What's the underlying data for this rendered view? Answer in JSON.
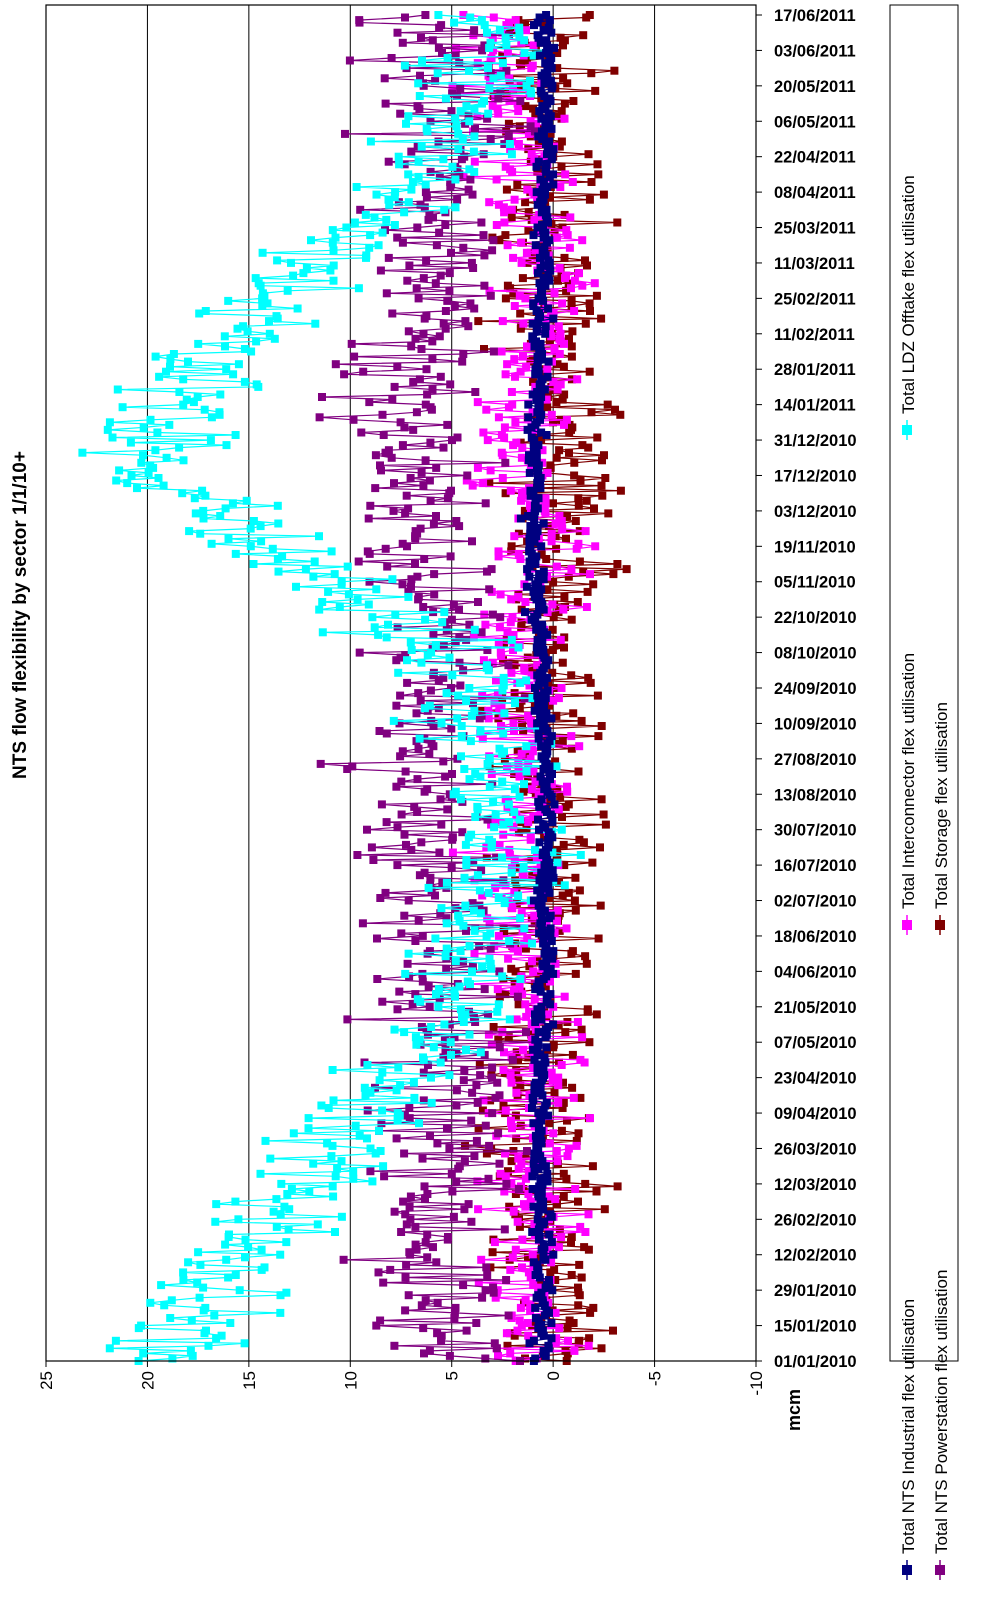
{
  "chart_data": {
    "type": "line",
    "title": "NTS flow flexibility by sector 1/1/10+",
    "ylabel": "mcm",
    "xlabel": "",
    "ylim": [
      -10,
      25
    ],
    "yticks": [
      25,
      20,
      15,
      10,
      5,
      0,
      -5,
      -10
    ],
    "ytick_labels": [
      "25",
      "20",
      "15",
      "10",
      "5",
      "0",
      "-5",
      "-10"
    ],
    "grid": true,
    "orientation": "rotated-90",
    "legend_position": "bottom",
    "x_start": "01/01/2010",
    "x_end": "17/06/2011",
    "x_tick_labels": [
      "01/01/2010",
      "15/01/2010",
      "29/01/2010",
      "12/02/2010",
      "26/02/2010",
      "12/03/2010",
      "26/03/2010",
      "09/04/2010",
      "23/04/2010",
      "07/05/2010",
      "21/05/2010",
      "04/06/2010",
      "18/06/2010",
      "02/07/2010",
      "16/07/2010",
      "30/07/2010",
      "13/08/2010",
      "27/08/2010",
      "10/09/2010",
      "24/09/2010",
      "08/10/2010",
      "22/10/2010",
      "05/11/2010",
      "19/11/2010",
      "03/12/2010",
      "17/12/2010",
      "31/12/2010",
      "14/01/2011",
      "28/01/2011",
      "11/02/2011",
      "25/02/2011",
      "11/03/2011",
      "25/03/2011",
      "08/04/2011",
      "22/04/2011",
      "06/05/2011",
      "20/05/2011",
      "03/06/2011",
      "17/06/2011"
    ],
    "series": [
      {
        "name": "Total NTS Industrial flex utilisation",
        "color": "#000080",
        "anchors": [
          [
            "01/01/2010",
            0.6
          ],
          [
            "15/02/2010",
            0.4
          ],
          [
            "01/04/2010",
            0.8
          ],
          [
            "01/06/2010",
            0.5
          ],
          [
            "01/08/2010",
            0.3
          ],
          [
            "01/10/2010",
            0.6
          ],
          [
            "01/12/2010",
            1.0
          ],
          [
            "01/01/2011",
            0.8
          ],
          [
            "01/03/2011",
            0.6
          ],
          [
            "01/05/2011",
            0.3
          ],
          [
            "17/06/2011",
            0.5
          ]
        ],
        "noise": 0.3
      },
      {
        "name": "Total Interconnector flex utilisation",
        "color": "#ff00ff",
        "anchors": [
          [
            "01/01/2010",
            1.5
          ],
          [
            "15/02/2010",
            1.0
          ],
          [
            "01/04/2010",
            0.8
          ],
          [
            "01/06/2010",
            1.5
          ],
          [
            "15/08/2010",
            1.5
          ],
          [
            "15/10/2010",
            2.0
          ],
          [
            "15/11/2010",
            0.0
          ],
          [
            "15/12/2010",
            2.0
          ],
          [
            "15/01/2011",
            1.0
          ],
          [
            "15/03/2011",
            0.5
          ],
          [
            "15/05/2011",
            2.0
          ],
          [
            "17/06/2011",
            3.0
          ]
        ],
        "noise": 1.6
      },
      {
        "name": "Total NTS Powerstation flex utilisation",
        "color": "#800080",
        "anchors": [
          [
            "01/01/2010",
            5.5
          ],
          [
            "15/02/2010",
            6.0
          ],
          [
            "01/04/2010",
            5.5
          ],
          [
            "01/06/2010",
            5.5
          ],
          [
            "15/07/2010",
            6.0
          ],
          [
            "01/09/2010",
            6.5
          ],
          [
            "15/10/2010",
            5.5
          ],
          [
            "15/12/2010",
            7.0
          ],
          [
            "15/01/2011",
            7.0
          ],
          [
            "01/03/2011",
            6.0
          ],
          [
            "15/04/2011",
            5.0
          ],
          [
            "17/06/2011",
            6.0
          ]
        ],
        "noise": 2.4
      },
      {
        "name": "Total LDZ Offtake flex utilisation",
        "color": "#00ffff",
        "anchors": [
          [
            "01/01/2010",
            19.0
          ],
          [
            "15/01/2010",
            18.0
          ],
          [
            "15/02/2010",
            15.0
          ],
          [
            "15/03/2010",
            12.0
          ],
          [
            "15/04/2010",
            8.0
          ],
          [
            "15/05/2010",
            5.0
          ],
          [
            "15/06/2010",
            3.5
          ],
          [
            "15/07/2010",
            2.5
          ],
          [
            "15/08/2010",
            2.5
          ],
          [
            "15/09/2010",
            3.5
          ],
          [
            "08/10/2010",
            5.0
          ],
          [
            "22/10/2010",
            8.0
          ],
          [
            "15/11/2010",
            13.0
          ],
          [
            "15/12/2010",
            20.0
          ],
          [
            "01/01/2011",
            19.0
          ],
          [
            "01/02/2011",
            17.0
          ],
          [
            "01/03/2011",
            13.0
          ],
          [
            "01/04/2011",
            8.0
          ],
          [
            "01/05/2011",
            5.0
          ],
          [
            "17/06/2011",
            3.0
          ]
        ],
        "noise": 2.2
      },
      {
        "name": "Total Storage flex utilisation",
        "color": "#800000",
        "anchors": [
          [
            "01/01/2010",
            -0.5
          ],
          [
            "01/04/2010",
            1.0
          ],
          [
            "01/07/2010",
            0.5
          ],
          [
            "01/10/2010",
            0.5
          ],
          [
            "01/12/2010",
            -0.5
          ],
          [
            "01/03/2011",
            0.0
          ],
          [
            "17/06/2011",
            0.5
          ]
        ],
        "noise": 1.7
      }
    ]
  }
}
